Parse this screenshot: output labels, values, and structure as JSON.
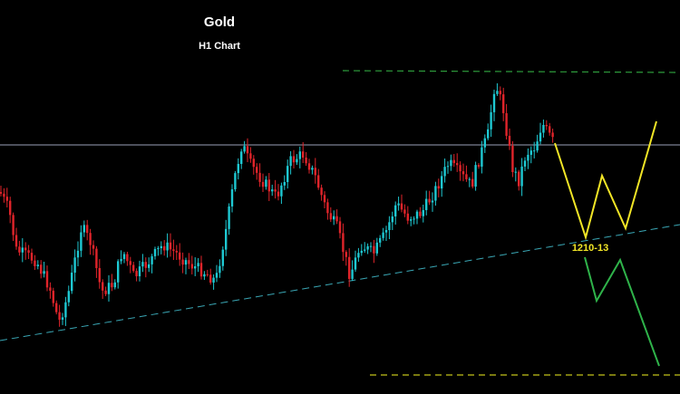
{
  "chart_data": {
    "type": "candlestick",
    "title": "Gold",
    "subtitle": "H1 Chart",
    "annotation": "1210-13",
    "colors": {
      "background": "#000000",
      "bull": "#1ec8d2",
      "bear": "#e0242a",
      "horizontal_line": "#9aa0b8",
      "resistance": "#2e9c3c",
      "support": "#3aa7b5",
      "bull_path": "#f2e626",
      "bear_path": "#2fb34a",
      "annotation_text": "#f2e626"
    },
    "legend": "none",
    "grid": false
  }
}
